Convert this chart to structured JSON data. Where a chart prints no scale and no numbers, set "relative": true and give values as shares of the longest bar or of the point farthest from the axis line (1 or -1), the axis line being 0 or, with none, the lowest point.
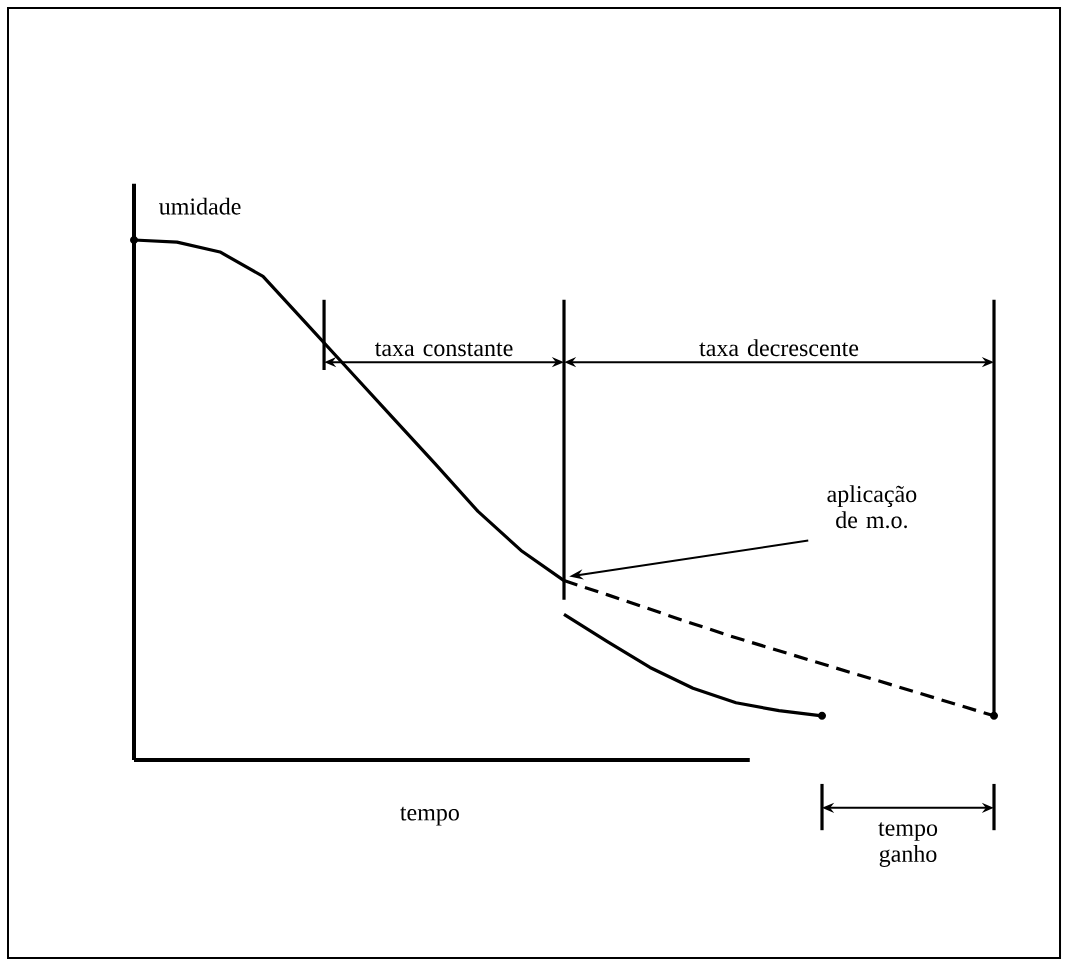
{
  "chart_data": {
    "type": "line",
    "relative": true,
    "xlabel": "tempo",
    "ylabel": "umidade",
    "categories": [
      null,
      null,
      null,
      null,
      null,
      null,
      null,
      null,
      null,
      null,
      null,
      null,
      null,
      null,
      null,
      null,
      null,
      null,
      null,
      null,
      null
    ],
    "series": [
      {
        "color": "#000000",
        "line_style": "solid",
        "values": [
          1.0,
          0.996,
          0.977,
          0.93,
          0.84,
          0.75,
          0.66,
          0.57,
          0.478,
          0.403,
          0.345,
          null,
          null,
          null,
          null,
          null,
          null,
          null,
          null,
          null,
          null
        ]
      },
      {
        "color": "#000000",
        "line_style": "solid",
        "values": [
          null,
          null,
          null,
          null,
          null,
          null,
          null,
          null,
          null,
          null,
          0.28,
          0.228,
          0.178,
          0.138,
          0.11,
          0.095,
          0.085,
          null,
          null,
          null,
          null
        ]
      },
      {
        "color": "#000000",
        "line_style": "dashed",
        "values": [
          null,
          null,
          null,
          null,
          null,
          null,
          null,
          null,
          null,
          null,
          0.345,
          0.318,
          0.29,
          0.262,
          0.235,
          0.21,
          0.185,
          0.16,
          0.135,
          0.11,
          0.085
        ]
      }
    ],
    "annotations": [
      "taxa constante",
      "taxa decrescente",
      "aplicação de m.o.",
      "tempo ganho"
    ]
  }
}
